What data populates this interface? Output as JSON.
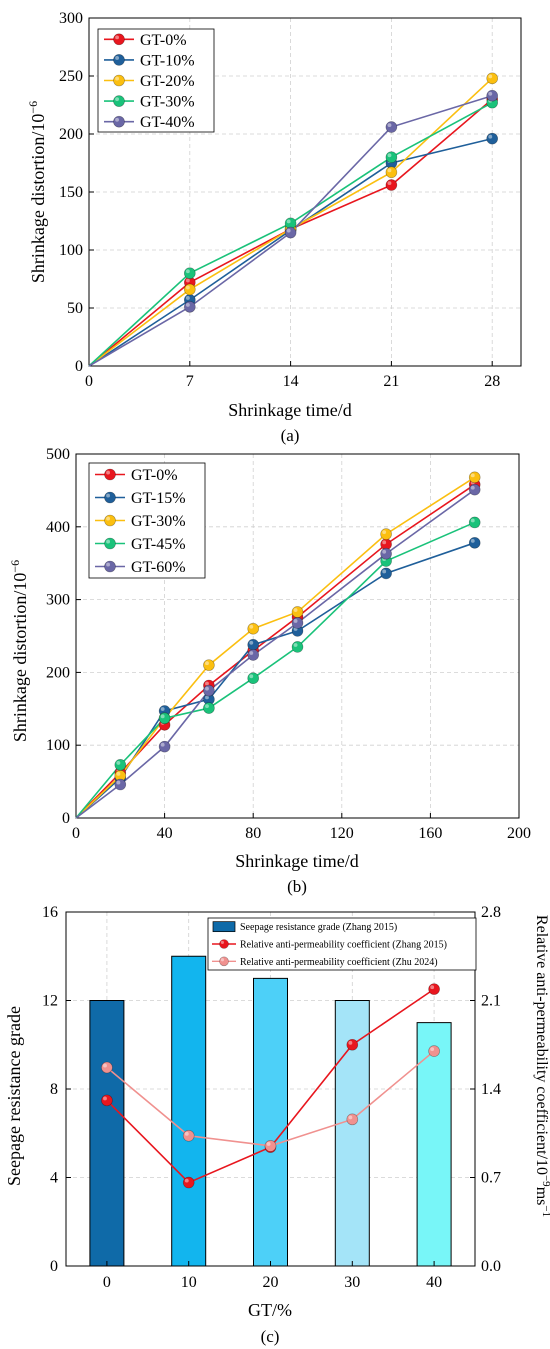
{
  "chart_data": [
    {
      "type": "line",
      "panel_label": "(a)",
      "xlabel": "Shrinkage time/d",
      "ylabel": "Shrinkage distortion/10",
      "ylabel_exp": "−6",
      "xlim": [
        0,
        30
      ],
      "ylim": [
        0,
        300
      ],
      "xticks": [
        0,
        7,
        14,
        21,
        28
      ],
      "yticks": [
        0,
        50,
        100,
        150,
        200,
        250,
        300
      ],
      "grid": true,
      "legend_position": "top-left",
      "x": [
        0,
        7,
        14,
        21,
        28
      ],
      "series": [
        {
          "name": "GT-0%",
          "color": "#e8161e",
          "values": [
            0,
            72,
            118,
            156,
            230
          ]
        },
        {
          "name": "GT-10%",
          "color": "#1f5f9a",
          "values": [
            0,
            57,
            117,
            175,
            196
          ]
        },
        {
          "name": "GT-20%",
          "color": "#fbbf10",
          "values": [
            0,
            66,
            118,
            167,
            248
          ]
        },
        {
          "name": "GT-30%",
          "color": "#1ac27a",
          "values": [
            0,
            80,
            123,
            180,
            227
          ]
        },
        {
          "name": "GT-40%",
          "color": "#6a67a6",
          "values": [
            0,
            51,
            115,
            206,
            233
          ]
        }
      ]
    },
    {
      "type": "line",
      "panel_label": "(b)",
      "xlabel": "Shrinkage time/d",
      "ylabel": "Shrinkage distortion/10",
      "ylabel_exp": "−6",
      "xlim": [
        0,
        200
      ],
      "ylim": [
        0,
        500
      ],
      "xticks": [
        0,
        40,
        80,
        120,
        160,
        200
      ],
      "yticks": [
        0,
        100,
        200,
        300,
        400,
        500
      ],
      "grid": true,
      "legend_position": "top-left",
      "x": [
        0,
        20,
        40,
        60,
        80,
        100,
        140,
        180
      ],
      "series": [
        {
          "name": "GT-0%",
          "color": "#e8161e",
          "values": [
            0,
            62,
            128,
            182,
            230,
            276,
            376,
            458
          ]
        },
        {
          "name": "GT-15%",
          "color": "#1f5f9a",
          "values": [
            0,
            55,
            147,
            163,
            238,
            257,
            336,
            378
          ]
        },
        {
          "name": "GT-30%",
          "color": "#fbbf10",
          "values": [
            0,
            58,
            137,
            210,
            260,
            283,
            390,
            468
          ]
        },
        {
          "name": "GT-45%",
          "color": "#1ac27a",
          "values": [
            0,
            73,
            137,
            151,
            192,
            235,
            353,
            406
          ]
        },
        {
          "name": "GT-60%",
          "color": "#6a67a6",
          "values": [
            0,
            46,
            98,
            175,
            224,
            268,
            363,
            451
          ]
        }
      ]
    },
    {
      "type": "bar",
      "panel_label": "(c)",
      "xlabel": "GT/%",
      "ylabel": "Seepage resistance grade",
      "y2label": "Relative anti-permeability coefficient/10",
      "y2label_exp": "−9",
      "y2label_unit": "ms",
      "y2label_unit_exp": "−1",
      "categories": [
        "0",
        "10",
        "20",
        "30",
        "40"
      ],
      "ylim": [
        0,
        16
      ],
      "yticks": [
        0,
        4,
        8,
        12,
        16
      ],
      "y2lim": [
        0,
        2.8
      ],
      "y2ticks": [
        "0.0",
        "0.7",
        "1.4",
        "2.1",
        "2.8"
      ],
      "grid": true,
      "legend_position": "top",
      "bars": {
        "name": "Seepage resistance grade (Zhang 2015)",
        "values": [
          12,
          14,
          13,
          12,
          11
        ],
        "colors": [
          "#0f6aa8",
          "#12b5ee",
          "#4dd0f8",
          "#a4e4f8",
          "#78f6f8"
        ]
      },
      "lines": [
        {
          "name": "Relative anti-permeability coefficient (Zhang 2015)",
          "color": "#e8161e",
          "values": [
            1.31,
            0.66,
            0.94,
            1.75,
            2.19
          ]
        },
        {
          "name": "Relative anti-permeability coefficient (Zhu 2024)",
          "color": "#f0918f",
          "values": [
            1.57,
            1.03,
            0.95,
            1.16,
            1.7
          ]
        }
      ]
    }
  ]
}
